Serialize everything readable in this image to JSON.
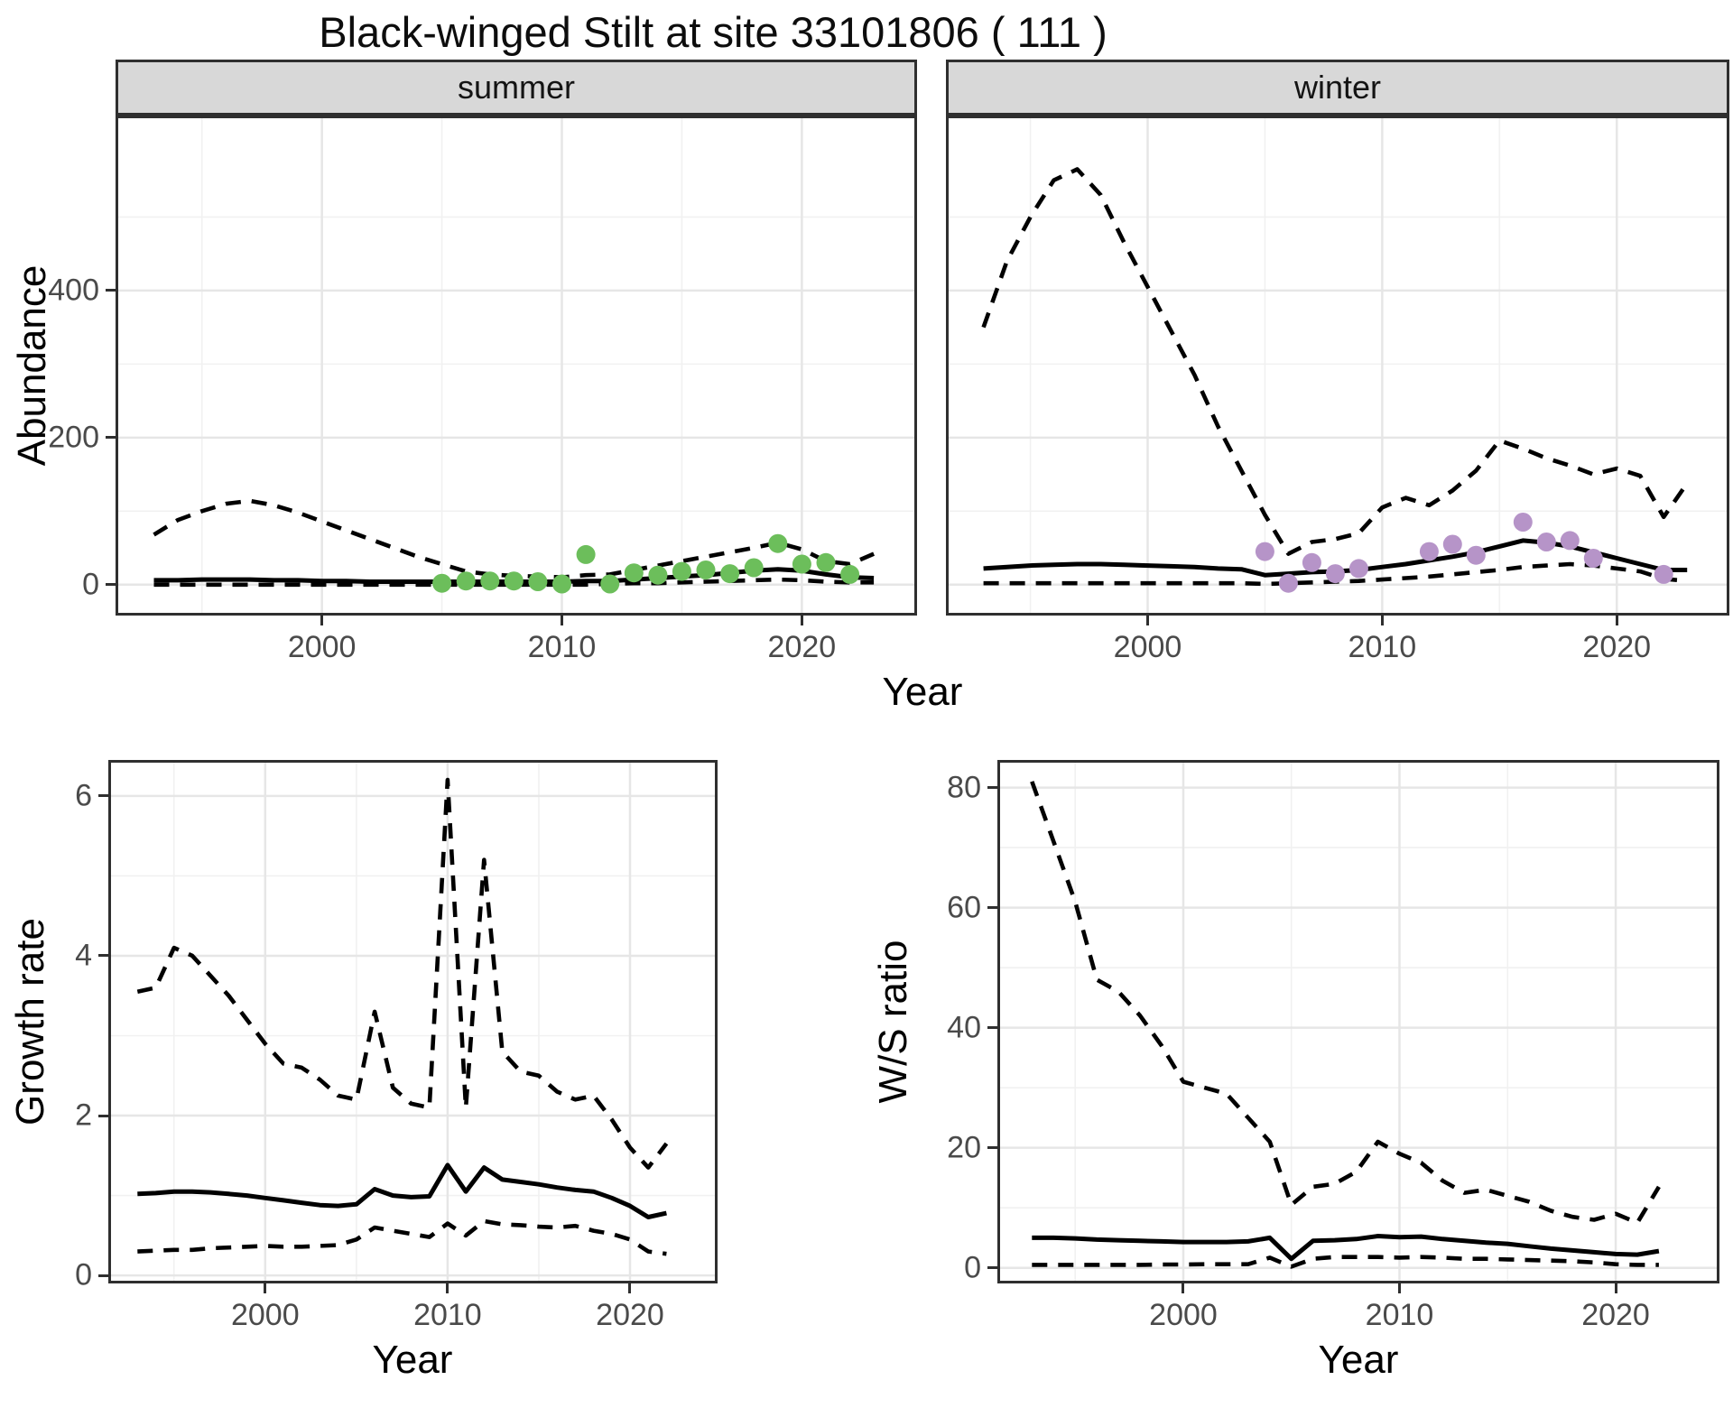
{
  "title": "Black-winged Stilt at site 33101806 ( 111 )",
  "facets": {
    "summer_label": "summer",
    "winter_label": "winter"
  },
  "axes": {
    "year_label": "Year",
    "abundance_label": "Abundance",
    "growth_label": "Growth rate",
    "ws_label": "W/S ratio"
  },
  "colors": {
    "summer_points": "#6cbe5b",
    "winter_points": "#b694c8",
    "line": "#000000",
    "grid_major": "#e6e6e6",
    "grid_minor": "#f1f1f1",
    "panel_border": "#2f2f2f",
    "strip_bg": "#d8d8d8",
    "tick_text": "#4a4a4a"
  },
  "chart_data": [
    {
      "id": "abundance-summer",
      "type": "line",
      "facet": "summer",
      "xlabel": "Year",
      "ylabel": "Abundance",
      "x_range": [
        1991.4,
        2024.8
      ],
      "y_range": [
        -42,
        638
      ],
      "x_ticks": [
        2000,
        2010,
        2020
      ],
      "x_minor_ticks": [
        1995,
        2005,
        2015
      ],
      "y_ticks": [
        0,
        200,
        400
      ],
      "y_minor_ticks": [
        100,
        300,
        500
      ],
      "years": [
        1993,
        1994,
        1995,
        1996,
        1997,
        1998,
        1999,
        2000,
        2001,
        2002,
        2003,
        2004,
        2005,
        2006,
        2007,
        2008,
        2009,
        2010,
        2011,
        2012,
        2013,
        2014,
        2015,
        2016,
        2017,
        2018,
        2019,
        2020,
        2021,
        2022,
        2023
      ],
      "series": [
        {
          "name": "upper_95ci",
          "style": "dashed",
          "values": [
            68,
            88,
            100,
            110,
            114,
            108,
            98,
            86,
            74,
            62,
            50,
            38,
            28,
            18,
            14,
            12,
            11,
            10,
            13,
            14,
            20,
            26,
            32,
            38,
            44,
            50,
            57,
            48,
            32,
            28,
            42
          ]
        },
        {
          "name": "estimate",
          "style": "solid",
          "values": [
            6,
            6,
            7,
            7,
            7,
            6,
            6,
            5,
            5,
            4,
            4,
            4,
            4,
            4,
            4,
            4,
            4,
            4,
            5,
            5,
            7,
            9,
            11,
            13,
            16,
            19,
            21,
            19,
            14,
            10,
            9
          ]
        },
        {
          "name": "lower_95ci",
          "style": "dashed",
          "values": [
            0,
            0,
            0,
            0,
            0,
            0,
            0,
            0,
            0,
            0,
            0,
            0,
            0,
            0,
            0,
            0,
            0,
            0,
            0,
            1,
            2,
            2,
            3,
            4,
            5,
            6,
            7,
            6,
            4,
            3,
            3
          ]
        }
      ],
      "points": {
        "name": "observed_counts",
        "color": "#6cbe5b",
        "x": [
          2005,
          2006,
          2007,
          2008,
          2009,
          2010,
          2011,
          2012,
          2013,
          2014,
          2015,
          2016,
          2017,
          2018,
          2019,
          2020,
          2021,
          2022
        ],
        "y": [
          2,
          5,
          5,
          5,
          4,
          1,
          41,
          1,
          16,
          13,
          18,
          20,
          15,
          23,
          56,
          28,
          30,
          14
        ]
      }
    },
    {
      "id": "abundance-winter",
      "type": "line",
      "facet": "winter",
      "xlabel": "Year",
      "ylabel": "Abundance",
      "x_range": [
        1991.4,
        2024.8
      ],
      "y_range": [
        -42,
        638
      ],
      "x_ticks": [
        2000,
        2010,
        2020
      ],
      "x_minor_ticks": [
        1995,
        2005,
        2015
      ],
      "y_ticks": [
        0,
        200,
        400
      ],
      "y_minor_ticks": [
        100,
        300,
        500
      ],
      "years": [
        1993,
        1994,
        1995,
        1996,
        1997,
        1998,
        1999,
        2000,
        2001,
        2002,
        2003,
        2004,
        2005,
        2006,
        2007,
        2008,
        2009,
        2010,
        2011,
        2012,
        2013,
        2014,
        2015,
        2016,
        2017,
        2018,
        2019,
        2020,
        2021,
        2022,
        2023
      ],
      "series": [
        {
          "name": "upper_95ci",
          "style": "dashed",
          "values": [
            350,
            440,
            500,
            550,
            565,
            530,
            465,
            405,
            345,
            285,
            215,
            155,
            95,
            42,
            58,
            62,
            70,
            105,
            118,
            108,
            128,
            155,
            196,
            185,
            172,
            162,
            150,
            158,
            148,
            92,
            138
          ]
        },
        {
          "name": "estimate",
          "style": "solid",
          "values": [
            22,
            24,
            26,
            27,
            28,
            28,
            27,
            26,
            25,
            24,
            22,
            21,
            13,
            15,
            17,
            18,
            20,
            24,
            28,
            33,
            38,
            44,
            52,
            60,
            57,
            52,
            44,
            36,
            28,
            20,
            20
          ]
        },
        {
          "name": "lower_95ci",
          "style": "dashed",
          "values": [
            2,
            2,
            2,
            2,
            2,
            2,
            2,
            2,
            2,
            2,
            2,
            2,
            1,
            2,
            3,
            4,
            5,
            7,
            9,
            11,
            14,
            17,
            20,
            24,
            26,
            28,
            26,
            22,
            18,
            8,
            5
          ]
        }
      ],
      "points": {
        "name": "observed_counts",
        "color": "#b694c8",
        "x": [
          2005,
          2006,
          2007,
          2008,
          2009,
          2012,
          2013,
          2014,
          2016,
          2017,
          2018,
          2019,
          2022
        ],
        "y": [
          45,
          2,
          30,
          15,
          22,
          45,
          55,
          40,
          85,
          58,
          60,
          36,
          14
        ]
      }
    },
    {
      "id": "growth-rate",
      "type": "line",
      "xlabel": "Year",
      "ylabel": "Growth rate",
      "x_range": [
        1991.4,
        2024.8
      ],
      "y_range": [
        -0.1,
        6.45
      ],
      "x_ticks": [
        2000,
        2010,
        2020
      ],
      "x_minor_ticks": [
        1995,
        2005,
        2015
      ],
      "y_ticks": [
        0,
        2,
        4,
        6
      ],
      "y_minor_ticks": [
        1,
        3,
        5
      ],
      "years": [
        1993,
        1994,
        1995,
        1996,
        1997,
        1998,
        1999,
        2000,
        2001,
        2002,
        2003,
        2004,
        2005,
        2006,
        2007,
        2008,
        2009,
        2010,
        2011,
        2012,
        2013,
        2014,
        2015,
        2016,
        2017,
        2018,
        2019,
        2020,
        2021,
        2022
      ],
      "series": [
        {
          "name": "upper_95ci",
          "style": "dashed",
          "values": [
            3.55,
            3.6,
            4.1,
            4.0,
            3.75,
            3.5,
            3.2,
            2.9,
            2.65,
            2.6,
            2.45,
            2.25,
            2.2,
            3.3,
            2.35,
            2.15,
            2.1,
            6.2,
            2.1,
            5.2,
            2.8,
            2.55,
            2.5,
            2.3,
            2.2,
            2.25,
            1.95,
            1.6,
            1.35,
            1.65
          ]
        },
        {
          "name": "estimate",
          "style": "solid",
          "values": [
            1.02,
            1.03,
            1.05,
            1.05,
            1.04,
            1.02,
            1.0,
            0.97,
            0.94,
            0.91,
            0.88,
            0.87,
            0.89,
            1.08,
            1.0,
            0.98,
            0.99,
            1.38,
            1.05,
            1.35,
            1.2,
            1.17,
            1.14,
            1.1,
            1.07,
            1.05,
            0.97,
            0.87,
            0.73,
            0.78
          ]
        },
        {
          "name": "lower_95ci",
          "style": "dashed",
          "values": [
            0.3,
            0.31,
            0.32,
            0.32,
            0.34,
            0.35,
            0.36,
            0.37,
            0.36,
            0.36,
            0.37,
            0.38,
            0.45,
            0.6,
            0.56,
            0.52,
            0.48,
            0.65,
            0.5,
            0.68,
            0.64,
            0.63,
            0.61,
            0.6,
            0.62,
            0.56,
            0.52,
            0.45,
            0.3,
            0.27
          ]
        }
      ]
    },
    {
      "id": "ws-ratio",
      "type": "line",
      "xlabel": "Year",
      "ylabel": "W/S ratio",
      "x_range": [
        1991.4,
        2024.8
      ],
      "y_range": [
        -2.6,
        84.6
      ],
      "x_ticks": [
        2000,
        2010,
        2020
      ],
      "x_minor_ticks": [
        1995,
        2005,
        2015
      ],
      "y_ticks": [
        0,
        20,
        40,
        60,
        80
      ],
      "y_minor_ticks": [
        10,
        30,
        50,
        70
      ],
      "years": [
        1993,
        1994,
        1995,
        1996,
        1997,
        1998,
        1999,
        2000,
        2001,
        2002,
        2003,
        2004,
        2005,
        2006,
        2007,
        2008,
        2009,
        2010,
        2011,
        2012,
        2013,
        2014,
        2015,
        2016,
        2017,
        2018,
        2019,
        2020,
        2021,
        2022
      ],
      "series": [
        {
          "name": "upper_95ci",
          "style": "dashed",
          "values": [
            81,
            71,
            61,
            48,
            46,
            42,
            37,
            31,
            30,
            29,
            25,
            21,
            10.5,
            13.5,
            14,
            16,
            21,
            19,
            17.5,
            14.5,
            12.5,
            13,
            12,
            11,
            9.5,
            8.5,
            8,
            9,
            7.5,
            13.5
          ]
        },
        {
          "name": "estimate",
          "style": "solid",
          "values": [
            5,
            5,
            4.9,
            4.7,
            4.6,
            4.5,
            4.4,
            4.3,
            4.3,
            4.3,
            4.4,
            5,
            1.5,
            4.5,
            4.6,
            4.8,
            5.3,
            5.1,
            5.2,
            4.8,
            4.5,
            4.2,
            4.0,
            3.6,
            3.2,
            2.9,
            2.6,
            2.3,
            2.2,
            2.8
          ]
        },
        {
          "name": "lower_95ci",
          "style": "dashed",
          "values": [
            0.5,
            0.5,
            0.5,
            0.5,
            0.5,
            0.5,
            0.55,
            0.55,
            0.6,
            0.6,
            0.6,
            1.7,
            0.2,
            1.5,
            1.8,
            1.8,
            1.8,
            1.7,
            1.8,
            1.7,
            1.5,
            1.5,
            1.4,
            1.3,
            1.2,
            1.1,
            0.9,
            0.6,
            0.5,
            0.5
          ]
        }
      ]
    }
  ]
}
